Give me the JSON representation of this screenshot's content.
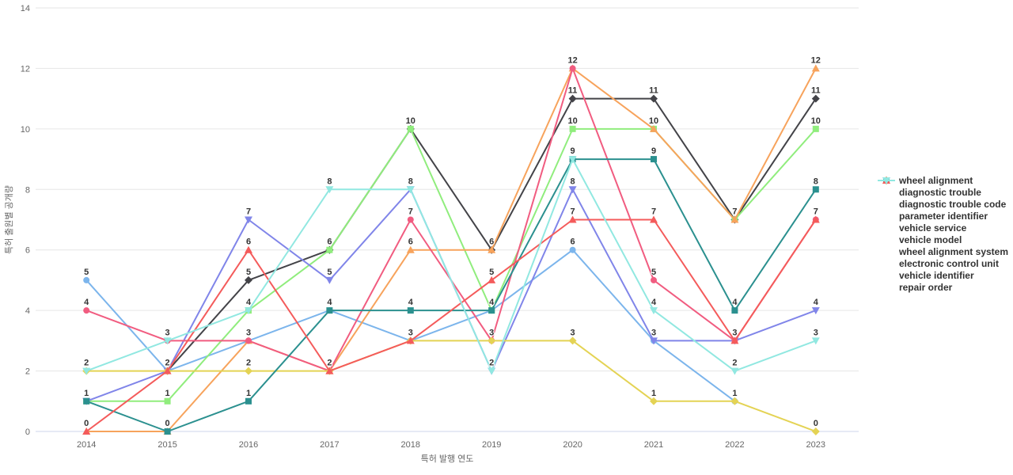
{
  "chart_data": {
    "type": "line",
    "title": "",
    "xlabel": "특허 발행 연도",
    "ylabel": "특허 출원별 공개량",
    "x": [
      "2014",
      "2015",
      "2016",
      "2017",
      "2018",
      "2019",
      "2020",
      "2021",
      "2022",
      "2023"
    ],
    "ylim": [
      0,
      14
    ],
    "yticks": [
      0,
      2,
      4,
      6,
      8,
      10,
      12,
      14
    ],
    "grid": true,
    "legend_position": "right",
    "data_labels": true,
    "grid_color": "#e6e6e6",
    "axis_line_color": "#ccd6eb",
    "series": [
      {
        "name": "wheel alignment",
        "color": "#7cb5ec",
        "marker": "circle",
        "values": [
          5,
          2,
          3,
          4,
          3,
          4,
          6,
          3,
          1,
          null
        ]
      },
      {
        "name": "diagnostic trouble",
        "color": "#434348",
        "marker": "diamond",
        "values": [
          null,
          2,
          5,
          6,
          10,
          6,
          11,
          11,
          7,
          11
        ]
      },
      {
        "name": "diagnostic trouble code",
        "color": "#90ed7d",
        "marker": "square",
        "values": [
          1,
          1,
          4,
          6,
          10,
          4,
          10,
          10,
          7,
          10
        ]
      },
      {
        "name": "parameter identifier",
        "color": "#f7a35c",
        "marker": "triangle",
        "values": [
          0,
          0,
          3,
          2,
          6,
          6,
          12,
          10,
          7,
          12
        ]
      },
      {
        "name": "vehicle service",
        "color": "#8085e9",
        "marker": "triangle-down",
        "values": [
          1,
          2,
          7,
          5,
          8,
          2,
          8,
          3,
          3,
          4
        ]
      },
      {
        "name": "vehicle model",
        "color": "#f15c80",
        "marker": "circle",
        "values": [
          4,
          3,
          3,
          2,
          7,
          3,
          12,
          5,
          3,
          7
        ]
      },
      {
        "name": "wheel alignment system",
        "color": "#e4d354",
        "marker": "diamond",
        "values": [
          2,
          2,
          2,
          2,
          3,
          3,
          3,
          1,
          1,
          0
        ]
      },
      {
        "name": "electronic control unit",
        "color": "#2b908f",
        "marker": "square",
        "values": [
          1,
          0,
          1,
          4,
          4,
          4,
          9,
          9,
          4,
          8
        ]
      },
      {
        "name": "vehicle identifier",
        "color": "#f45b5b",
        "marker": "triangle",
        "values": [
          0,
          2,
          6,
          2,
          3,
          5,
          7,
          7,
          3,
          7
        ]
      },
      {
        "name": "repair order",
        "color": "#91e8e1",
        "marker": "triangle-down",
        "values": [
          2,
          3,
          4,
          8,
          8,
          2,
          9,
          4,
          2,
          3
        ]
      }
    ]
  }
}
